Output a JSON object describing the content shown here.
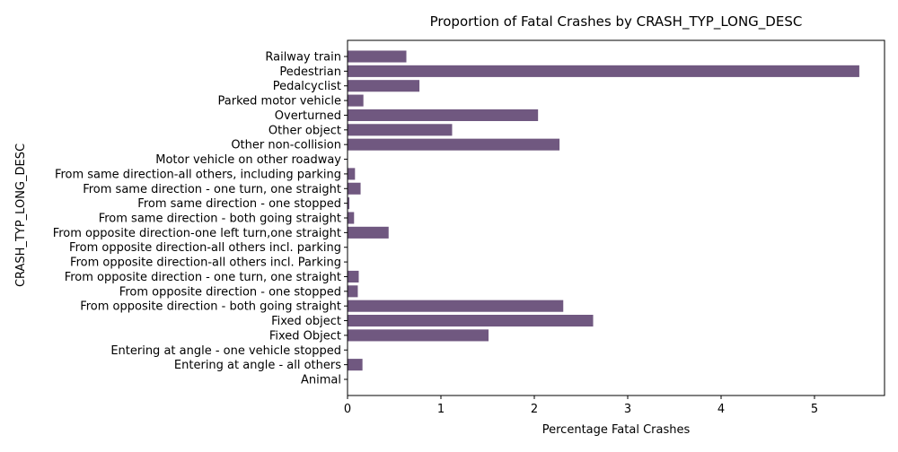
{
  "chart_data": {
    "type": "bar",
    "orientation": "horizontal",
    "title": "Proportion of Fatal Crashes by CRASH_TYP_LONG_DESC",
    "xlabel": "Percentage Fatal Crashes",
    "ylabel": "CRASH_TYP_LONG_DESC",
    "xlim": [
      0,
      5.75
    ],
    "xticks": [
      0,
      1,
      2,
      3,
      4,
      5
    ],
    "grid": false,
    "legend": "none",
    "bar_color": "#705880",
    "categories": [
      "Animal",
      "Entering at angle - all others",
      "Entering at angle - one vehicle stopped",
      "Fixed Object",
      "Fixed object",
      "From opposite direction - both going straight",
      "From opposite direction - one stopped",
      "From opposite direction - one turn, one straight",
      "From opposite direction-all others incl. Parking",
      "From opposite direction-all others incl. parking",
      "From opposite direction-one left turn,one straight",
      "From same direction - both going straight",
      "From same direction - one stopped",
      "From same direction - one turn, one straight",
      "From same direction-all others, including parking",
      "Motor vehicle on other roadway",
      "Other non-collision",
      "Other object",
      "Overturned",
      "Parked motor vehicle",
      "Pedalcyclist",
      "Pedestrian",
      "Railway train"
    ],
    "values": [
      0.0,
      0.16,
      0.0,
      1.51,
      2.63,
      2.31,
      0.11,
      0.12,
      0.0,
      0.0,
      0.44,
      0.07,
      0.02,
      0.14,
      0.08,
      0.0,
      2.27,
      1.12,
      2.04,
      0.17,
      0.77,
      5.48,
      0.63
    ]
  }
}
